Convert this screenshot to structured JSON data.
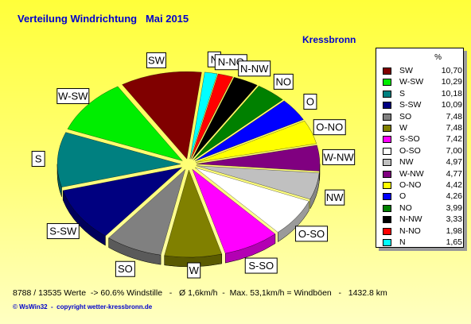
{
  "title": "Verteilung Windrichtung   Mai 2015",
  "station": "Kressbronn",
  "legend_unit": "%",
  "footer": "8788 / 13535 Werte  -> 60.6% Windstille   -   Ø 1,6km/h  -  Max. 53,1km/h = Windböen   -   1432.8 km",
  "copyright": "© WsWin32  -  copyright wetter-kressbronn.de",
  "chart_data": {
    "type": "pie",
    "title": "Verteilung Windrichtung   Mai 2015",
    "unit": "%",
    "categories": [
      "SW",
      "W-SW",
      "S",
      "S-SW",
      "SO",
      "W",
      "S-SO",
      "O-SO",
      "NW",
      "W-NW",
      "O-NO",
      "O",
      "NO",
      "N-NW",
      "N-NO",
      "N"
    ],
    "values": [
      10.7,
      10.29,
      10.18,
      10.09,
      7.48,
      7.48,
      7.42,
      7.0,
      4.97,
      4.77,
      4.42,
      4.26,
      3.99,
      3.33,
      1.98,
      1.65
    ],
    "value_labels": [
      "10,70",
      "10,29",
      "10,18",
      "10,09",
      "7,48",
      "7,48",
      "7,42",
      "7,00",
      "4,97",
      "4,77",
      "4,42",
      "4,26",
      "3,99",
      "3,33",
      "1,98",
      "1,65"
    ],
    "colors": [
      "#800000",
      "#00ee00",
      "#008080",
      "#000080",
      "#808080",
      "#808000",
      "#ff00ff",
      "#ffffff",
      "#c0c0c0",
      "#800080",
      "#ffff00",
      "#0000ff",
      "#008000",
      "#000000",
      "#ff0000",
      "#00ffff"
    ],
    "legend_position": "right"
  }
}
